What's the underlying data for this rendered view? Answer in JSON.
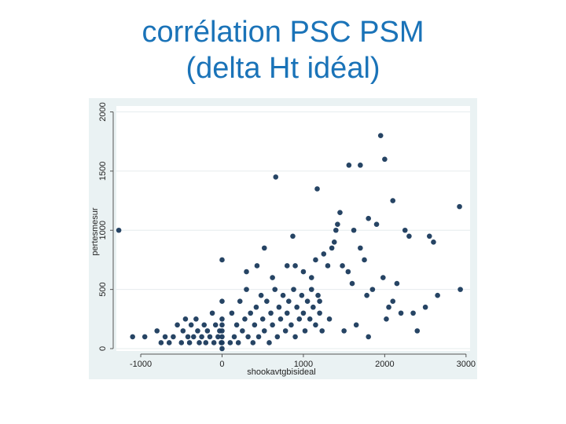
{
  "slide": {
    "title_line1": "corrélation PSC PSM",
    "title_line2": "(delta Ht idéal)"
  },
  "chart_data": {
    "type": "scatter",
    "title": "",
    "xlabel": "shookavtgbisideal",
    "ylabel": "pertesmesur",
    "xlim": [
      -1300,
      3050
    ],
    "ylim": [
      -20,
      2050
    ],
    "xticks": [
      -1000,
      0,
      1000,
      2000,
      3000
    ],
    "yticks": [
      0,
      500,
      1000,
      1500,
      2000
    ],
    "grid": true,
    "marker_color": "#1a3a5c",
    "series": [
      {
        "points": [
          [
            -1270,
            1000
          ],
          [
            -1100,
            100
          ],
          [
            -950,
            100
          ],
          [
            -800,
            150
          ],
          [
            -750,
            50
          ],
          [
            -700,
            100
          ],
          [
            -650,
            50
          ],
          [
            -600,
            100
          ],
          [
            -550,
            200
          ],
          [
            -500,
            50
          ],
          [
            -480,
            150
          ],
          [
            -450,
            250
          ],
          [
            -420,
            100
          ],
          [
            -400,
            50
          ],
          [
            -380,
            200
          ],
          [
            -350,
            100
          ],
          [
            -320,
            250
          ],
          [
            -300,
            150
          ],
          [
            -280,
            50
          ],
          [
            -250,
            100
          ],
          [
            -220,
            200
          ],
          [
            -200,
            50
          ],
          [
            -180,
            150
          ],
          [
            -150,
            100
          ],
          [
            -120,
            300
          ],
          [
            -100,
            50
          ],
          [
            -80,
            200
          ],
          [
            -50,
            100
          ],
          [
            -30,
            150
          ],
          [
            -10,
            50
          ],
          [
            0,
            0
          ],
          [
            0,
            50
          ],
          [
            0,
            100
          ],
          [
            0,
            150
          ],
          [
            0,
            200
          ],
          [
            0,
            250
          ],
          [
            0,
            400
          ],
          [
            0,
            750
          ],
          [
            100,
            50
          ],
          [
            120,
            300
          ],
          [
            150,
            100
          ],
          [
            180,
            200
          ],
          [
            200,
            50
          ],
          [
            220,
            400
          ],
          [
            250,
            150
          ],
          [
            280,
            250
          ],
          [
            300,
            500
          ],
          [
            320,
            100
          ],
          [
            350,
            300
          ],
          [
            380,
            50
          ],
          [
            400,
            200
          ],
          [
            420,
            350
          ],
          [
            450,
            100
          ],
          [
            480,
            450
          ],
          [
            500,
            250
          ],
          [
            520,
            150
          ],
          [
            550,
            400
          ],
          [
            580,
            50
          ],
          [
            600,
            300
          ],
          [
            620,
            200
          ],
          [
            650,
            500
          ],
          [
            680,
            100
          ],
          [
            700,
            350
          ],
          [
            720,
            250
          ],
          [
            750,
            450
          ],
          [
            780,
            150
          ],
          [
            800,
            300
          ],
          [
            820,
            400
          ],
          [
            850,
            200
          ],
          [
            880,
            500
          ],
          [
            900,
            100
          ],
          [
            920,
            350
          ],
          [
            950,
            250
          ],
          [
            980,
            450
          ],
          [
            1000,
            300
          ],
          [
            1020,
            150
          ],
          [
            1050,
            400
          ],
          [
            1080,
            250
          ],
          [
            1100,
            500
          ],
          [
            1120,
            350
          ],
          [
            1150,
            200
          ],
          [
            1180,
            450
          ],
          [
            1200,
            300
          ],
          [
            1230,
            150
          ],
          [
            300,
            650
          ],
          [
            430,
            700
          ],
          [
            520,
            850
          ],
          [
            620,
            600
          ],
          [
            660,
            1450
          ],
          [
            800,
            700
          ],
          [
            900,
            700
          ],
          [
            1000,
            650
          ],
          [
            870,
            950
          ],
          [
            1100,
            600
          ],
          [
            1150,
            750
          ],
          [
            1170,
            1350
          ],
          [
            1200,
            400
          ],
          [
            1250,
            800
          ],
          [
            1300,
            700
          ],
          [
            1320,
            250
          ],
          [
            1350,
            850
          ],
          [
            1380,
            900
          ],
          [
            1400,
            1000
          ],
          [
            1420,
            1050
          ],
          [
            1450,
            1150
          ],
          [
            1480,
            700
          ],
          [
            1500,
            150
          ],
          [
            1550,
            650
          ],
          [
            1560,
            1550
          ],
          [
            1600,
            550
          ],
          [
            1620,
            1000
          ],
          [
            1650,
            200
          ],
          [
            1700,
            850
          ],
          [
            1700,
            1550
          ],
          [
            1750,
            750
          ],
          [
            1780,
            450
          ],
          [
            1800,
            100
          ],
          [
            1800,
            1100
          ],
          [
            1850,
            500
          ],
          [
            1900,
            1050
          ],
          [
            1950,
            1800
          ],
          [
            1980,
            600
          ],
          [
            2000,
            1600
          ],
          [
            2020,
            250
          ],
          [
            2050,
            350
          ],
          [
            2100,
            400
          ],
          [
            2100,
            1250
          ],
          [
            2150,
            550
          ],
          [
            2200,
            300
          ],
          [
            2250,
            1000
          ],
          [
            2300,
            950
          ],
          [
            2350,
            300
          ],
          [
            2400,
            150
          ],
          [
            2500,
            350
          ],
          [
            2550,
            950
          ],
          [
            2650,
            450
          ],
          [
            2600,
            900
          ],
          [
            2920,
            1200
          ],
          [
            2930,
            500
          ]
        ]
      }
    ]
  }
}
